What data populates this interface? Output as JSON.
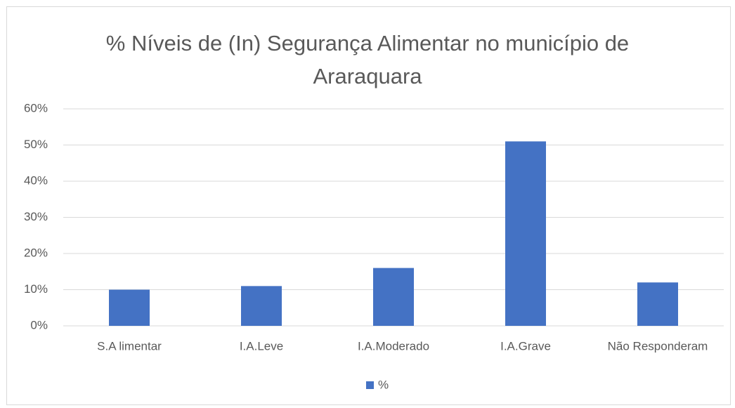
{
  "chart_data": {
    "type": "bar",
    "title": "% Níveis de (In) Segurança Alimentar no município de Araraquara",
    "categories": [
      "S.A limentar",
      "I.A.Leve",
      "I.A.Moderado",
      "I.A.Grave",
      "Não Responderam"
    ],
    "series": [
      {
        "name": "%",
        "color": "#4472c4",
        "values": [
          10,
          11,
          16,
          51,
          12
        ]
      }
    ],
    "ylim": [
      0,
      60
    ],
    "yticks": [
      {
        "value": 0,
        "label": "0%"
      },
      {
        "value": 10,
        "label": "10%"
      },
      {
        "value": 20,
        "label": "20%"
      },
      {
        "value": 30,
        "label": "30%"
      },
      {
        "value": 40,
        "label": "40%"
      },
      {
        "value": 50,
        "label": "50%"
      },
      {
        "value": 60,
        "label": "60%"
      }
    ],
    "grid": true,
    "legend": "bottom"
  }
}
